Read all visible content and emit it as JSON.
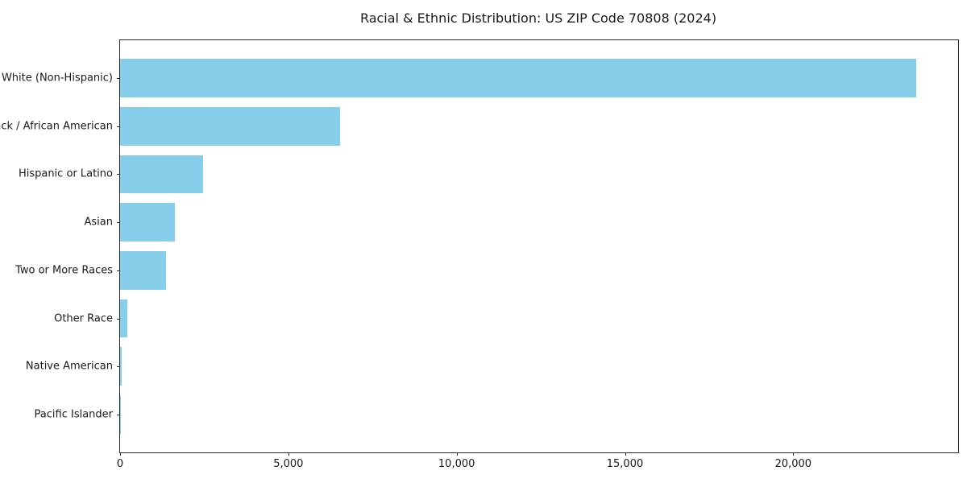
{
  "chart_data": {
    "type": "bar",
    "orientation": "horizontal",
    "title": "Racial & Ethnic Distribution: US ZIP Code 70808 (2024)",
    "categories": [
      "White (Non-Hispanic)",
      "Black / African American",
      "Hispanic or Latino",
      "Asian",
      "Two or More Races",
      "Other Race",
      "Native American",
      "Pacific Islander"
    ],
    "values": [
      23650,
      6540,
      2460,
      1620,
      1370,
      220,
      40,
      10
    ],
    "xlabel": "",
    "ylabel": "",
    "xlim": [
      0,
      24900
    ],
    "x_ticks": [
      0,
      5000,
      10000,
      15000,
      20000
    ],
    "x_tick_labels": [
      "0",
      "5,000",
      "10,000",
      "15,000",
      "20,000"
    ],
    "bar_color": "#87CEEB",
    "axis_color": "#262626",
    "text_color": "#1a1a1a",
    "grid": false,
    "legend": null
  }
}
